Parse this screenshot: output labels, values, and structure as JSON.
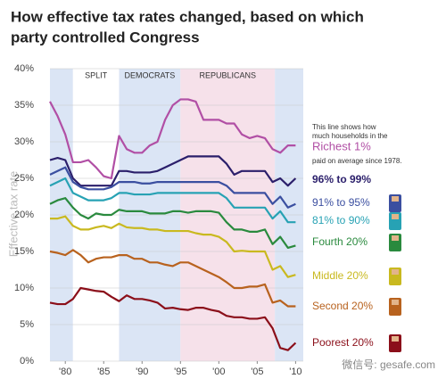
{
  "chart_data": {
    "type": "line",
    "title_lines": [
      "How effective tax rates changed, based on which",
      "party controlled Congress"
    ],
    "y_label": "Effective tax rate",
    "x": [
      1978,
      1979,
      1980,
      1981,
      1982,
      1983,
      1984,
      1985,
      1986,
      1987,
      1988,
      1989,
      1990,
      1991,
      1992,
      1993,
      1994,
      1995,
      1996,
      1997,
      1998,
      1999,
      2000,
      2001,
      2002,
      2003,
      2004,
      2005,
      2006,
      2007,
      2008,
      2009,
      2010
    ],
    "xlim": [
      1978,
      2011
    ],
    "xticks": [
      {
        "value": 1980,
        "label": "'80"
      },
      {
        "value": 1985,
        "label": "'85"
      },
      {
        "value": 1990,
        "label": "'90"
      },
      {
        "value": 1995,
        "label": "'95"
      },
      {
        "value": 2000,
        "label": "'00"
      },
      {
        "value": 2005,
        "label": "'05"
      },
      {
        "value": 2010,
        "label": "'10"
      }
    ],
    "ylim": [
      0,
      40
    ],
    "yticks": [
      {
        "value": 0,
        "label": "0%"
      },
      {
        "value": 5,
        "label": "5%"
      },
      {
        "value": 10,
        "label": "10%"
      },
      {
        "value": 15,
        "label": "15%"
      },
      {
        "value": 20,
        "label": "20%"
      },
      {
        "value": 25,
        "label": "25%"
      },
      {
        "value": 30,
        "label": "30%"
      },
      {
        "value": 35,
        "label": "35%"
      },
      {
        "value": 40,
        "label": "40%"
      }
    ],
    "grid": true,
    "regions": [
      {
        "label": null,
        "start": 1978,
        "end": 1981,
        "color": "#dbe5f5"
      },
      {
        "label": "SPLIT",
        "start": 1981,
        "end": 1987,
        "color": "#ffffff"
      },
      {
        "label": "DEMOCRATS",
        "start": 1987,
        "end": 1995,
        "color": "#dbe5f5"
      },
      {
        "label": "REPUBLICANS",
        "start": 1995,
        "end": 2007.3,
        "color": "#f6e1ea"
      },
      {
        "label": null,
        "start": 2007.3,
        "end": 2011,
        "color": "#dbe5f5"
      }
    ],
    "annotations": [
      "This line shows how",
      "much households in the",
      "paid on average since 1978."
    ],
    "watermark": "微信号: gesafe.com",
    "series": [
      {
        "name": "Richest 1%",
        "color": "#b14fa5",
        "values": [
          35.5,
          33.5,
          31,
          27.2,
          27.2,
          27.5,
          26.5,
          25.3,
          25,
          30.8,
          29,
          28.5,
          28.5,
          29.5,
          30,
          33,
          35,
          35.8,
          35.8,
          35.5,
          33,
          33,
          33,
          32.5,
          32.5,
          31,
          30.5,
          30.8,
          30.5,
          29,
          28.5,
          29.5,
          29.5
        ]
      },
      {
        "name": "96% to 99%",
        "color": "#2b1f6b",
        "values": [
          27.5,
          27.8,
          27.5,
          25,
          24,
          24,
          24,
          24,
          24,
          26,
          26,
          25.8,
          25.8,
          25.8,
          26,
          26.5,
          27,
          27.5,
          28,
          28,
          28,
          28,
          28,
          27,
          25.5,
          26,
          26,
          26,
          26,
          24.5,
          25,
          24,
          25
        ]
      },
      {
        "name": "91% to 95%",
        "color": "#3b4fa0",
        "values": [
          25.5,
          26,
          26.5,
          24.5,
          23.8,
          23.5,
          23.5,
          23.5,
          23.8,
          24.5,
          24.5,
          24.5,
          24.3,
          24.3,
          24.5,
          24.5,
          24.5,
          24.5,
          24.5,
          24.5,
          24.5,
          24.5,
          24.5,
          24,
          23,
          23,
          23,
          23,
          23,
          21.5,
          22.5,
          21,
          21.5
        ]
      },
      {
        "name": "81% to 90%",
        "color": "#27a2b4",
        "values": [
          24,
          24.5,
          25,
          23,
          22.5,
          22,
          22,
          22,
          22.3,
          23,
          23,
          22.8,
          22.8,
          22.8,
          23,
          23,
          23,
          23,
          23,
          23,
          23,
          23,
          23,
          22.3,
          21,
          21,
          21,
          21,
          21,
          19.5,
          20.5,
          19,
          19
        ]
      },
      {
        "name": "Fourth 20%",
        "color": "#2a8a3e",
        "values": [
          21.5,
          22,
          22.3,
          21,
          20,
          19.5,
          20.2,
          20,
          20,
          20.7,
          20.5,
          20.5,
          20.5,
          20.2,
          20.2,
          20.2,
          20.5,
          20.5,
          20.3,
          20.5,
          20.5,
          20.5,
          20.3,
          19,
          18,
          18,
          17.7,
          17.7,
          18,
          16,
          17,
          15.5,
          15.8
        ]
      },
      {
        "name": "Middle 20%",
        "color": "#c9b91f",
        "values": [
          19.5,
          19.5,
          19.8,
          18.5,
          18,
          18,
          18.3,
          18.5,
          18.2,
          18.8,
          18.3,
          18.2,
          18.2,
          18,
          18,
          17.8,
          17.8,
          17.8,
          17.8,
          17.5,
          17.3,
          17.3,
          17,
          16.3,
          15,
          15.1,
          15,
          15,
          15,
          12.5,
          13,
          11.5,
          11.8
        ]
      },
      {
        "name": "Second 20%",
        "color": "#b8621e",
        "values": [
          15,
          14.8,
          14.5,
          15.2,
          14.5,
          13.5,
          14,
          14.2,
          14.2,
          14.5,
          14.5,
          14,
          14,
          13.5,
          13.5,
          13.2,
          13,
          13.5,
          13.5,
          13,
          12.5,
          12,
          11.5,
          10.8,
          10,
          10,
          10.2,
          10.2,
          10.5,
          8,
          8.3,
          7.5,
          7.5
        ]
      },
      {
        "name": "Poorest 20%",
        "color": "#8b0f1a",
        "values": [
          8,
          7.8,
          7.8,
          8.5,
          10,
          9.8,
          9.6,
          9.5,
          8.8,
          8.2,
          9,
          8.5,
          8.5,
          8.3,
          8,
          7.2,
          7.3,
          7.1,
          7,
          7.3,
          7.3,
          7,
          6.8,
          6.2,
          6,
          6,
          5.8,
          5.8,
          6,
          4.5,
          1.8,
          1.5,
          2.5
        ]
      }
    ]
  }
}
